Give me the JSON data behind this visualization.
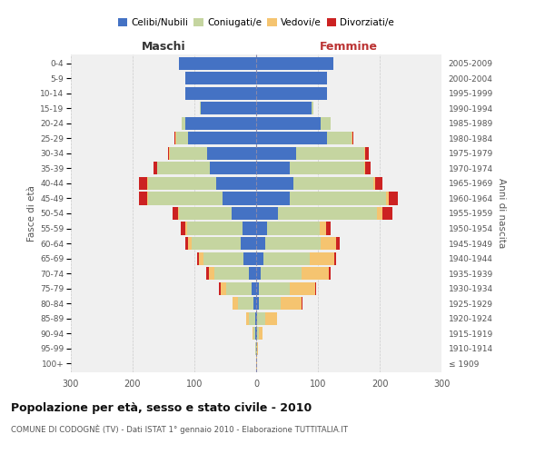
{
  "age_groups": [
    "100+",
    "95-99",
    "90-94",
    "85-89",
    "80-84",
    "75-79",
    "70-74",
    "65-69",
    "60-64",
    "55-59",
    "50-54",
    "45-49",
    "40-44",
    "35-39",
    "30-34",
    "25-29",
    "20-24",
    "15-19",
    "10-14",
    "5-9",
    "0-4"
  ],
  "birth_years": [
    "≤ 1909",
    "1910-1914",
    "1915-1919",
    "1920-1924",
    "1925-1929",
    "1930-1934",
    "1935-1939",
    "1940-1944",
    "1945-1949",
    "1950-1954",
    "1955-1959",
    "1960-1964",
    "1965-1969",
    "1970-1974",
    "1975-1979",
    "1980-1984",
    "1985-1989",
    "1990-1994",
    "1995-1999",
    "2000-2004",
    "2005-2009"
  ],
  "colors": {
    "celibe": "#4472c4",
    "coniugato": "#c5d5a0",
    "vedovo": "#f5c470",
    "divorziato": "#cc2222"
  },
  "maschi": {
    "celibe": [
      0,
      0,
      1,
      2,
      5,
      8,
      12,
      20,
      25,
      22,
      40,
      55,
      65,
      75,
      80,
      110,
      115,
      90,
      115,
      115,
      125
    ],
    "coniugato": [
      0,
      1,
      3,
      10,
      25,
      40,
      55,
      65,
      80,
      90,
      85,
      120,
      110,
      85,
      60,
      20,
      5,
      1,
      0,
      0,
      0
    ],
    "vedovo": [
      0,
      1,
      2,
      4,
      8,
      10,
      10,
      8,
      5,
      2,
      2,
      2,
      2,
      1,
      1,
      1,
      0,
      0,
      0,
      0,
      0
    ],
    "divorziato": [
      0,
      0,
      0,
      0,
      0,
      2,
      4,
      2,
      5,
      8,
      8,
      12,
      12,
      5,
      2,
      2,
      1,
      0,
      0,
      0,
      0
    ]
  },
  "femmine": {
    "celibe": [
      0,
      0,
      1,
      2,
      4,
      5,
      8,
      12,
      15,
      18,
      35,
      55,
      60,
      55,
      65,
      115,
      105,
      90,
      115,
      115,
      125
    ],
    "coniugato": [
      0,
      1,
      4,
      12,
      35,
      50,
      65,
      75,
      90,
      85,
      160,
      155,
      130,
      120,
      110,
      40,
      15,
      2,
      0,
      0,
      0
    ],
    "vedovo": [
      1,
      2,
      5,
      20,
      35,
      40,
      45,
      40,
      25,
      10,
      10,
      5,
      3,
      2,
      2,
      1,
      1,
      0,
      0,
      0,
      0
    ],
    "divorziato": [
      0,
      0,
      0,
      0,
      1,
      2,
      3,
      3,
      5,
      8,
      15,
      15,
      12,
      8,
      5,
      1,
      0,
      0,
      0,
      0,
      0
    ]
  },
  "title": "Popolazione per età, sesso e stato civile - 2010",
  "subtitle": "COMUNE DI CODOGNÈ (TV) - Dati ISTAT 1° gennaio 2010 - Elaborazione TUTTITALIA.IT",
  "xlabel_left": "Maschi",
  "xlabel_right": "Femmine",
  "ylabel_left": "Fasce di età",
  "ylabel_right": "Anni di nascita",
  "xlim": 300,
  "bg_color": "#f0f0f0",
  "grid_color": "#cccccc"
}
